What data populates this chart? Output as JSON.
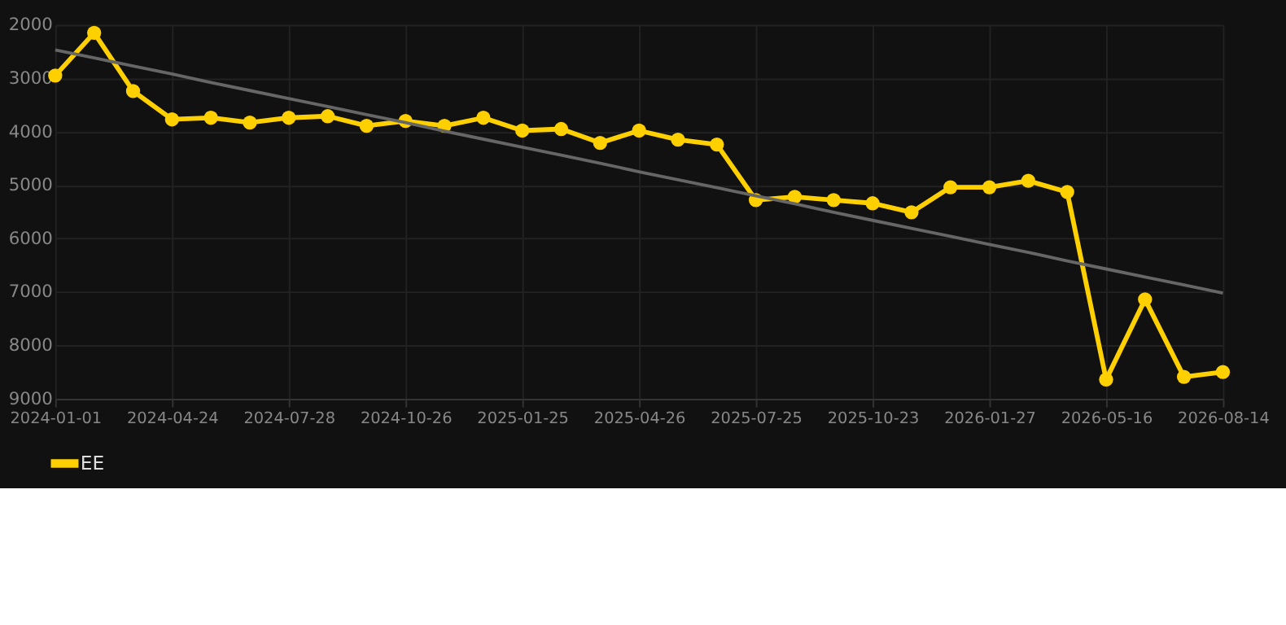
{
  "chart_data": {
    "type": "line",
    "categories": [
      "2024-01-01",
      null,
      null,
      "2024-04-24",
      null,
      null,
      "2024-07-28",
      null,
      null,
      "2024-10-26",
      null,
      null,
      "2025-01-25",
      null,
      null,
      "2025-04-26",
      null,
      null,
      "2025-07-25",
      null,
      null,
      "2025-10-23",
      null,
      null,
      "2026-01-27",
      null,
      null,
      "2026-05-16",
      null,
      null,
      "2026-08-14"
    ],
    "series": [
      {
        "name": "EE",
        "color": "#ffd000",
        "marker": "circle",
        "values": [
          2950,
          2150,
          3240,
          3770,
          3740,
          3830,
          3740,
          3710,
          3890,
          3800,
          3890,
          3740,
          3980,
          3950,
          4210,
          3980,
          4150,
          4240,
          5280,
          5220,
          5280,
          5340,
          5510,
          5040,
          5040,
          4920,
          5130,
          8640,
          7140,
          8590,
          8500
        ]
      },
      {
        "color": "#666666",
        "marker": "none",
        "values": [
          2470,
          2620,
          2770,
          2920,
          3080,
          3230,
          3380,
          3530,
          3680,
          3830,
          3990,
          4140,
          4290,
          4440,
          4590,
          4750,
          4900,
          5050,
          5200,
          5350,
          5510,
          5660,
          5810,
          5960,
          6110,
          6260,
          6420,
          6570,
          6720,
          6870,
          7020
        ]
      }
    ],
    "ylim": [
      9000,
      2000
    ],
    "yticks": [
      2000,
      3000,
      4000,
      5000,
      6000,
      7000,
      8000,
      9000
    ],
    "grid": true,
    "legend": "bottom"
  }
}
